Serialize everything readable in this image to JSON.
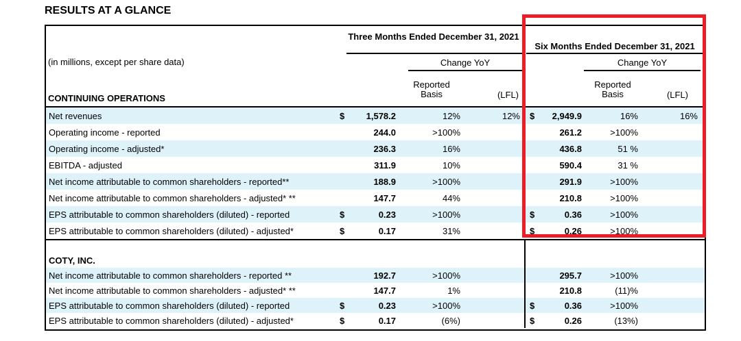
{
  "page_title": "RESULTS AT A GLANCE",
  "table": {
    "units_note": "(in millions, except per share data)",
    "period_groups": [
      {
        "title": "Three Months Ended December 31, 2021",
        "change_label": "Change YoY",
        "reported_basis": [
          "Reported",
          "Basis"
        ],
        "lfl_label": "(LFL)"
      },
      {
        "title": "Six Months Ended December 31, 2021",
        "change_label": "Change YoY",
        "reported_basis": [
          "Reported",
          "Basis"
        ],
        "lfl_label": "(LFL)"
      }
    ],
    "sections": [
      {
        "heading": "CONTINUING OPERATIONS",
        "heading_row": false,
        "rows": [
          {
            "label": "Net revenues",
            "usd_3m": "$",
            "value_3m": "1,578.2",
            "reported_3m": "12%",
            "lfl_3m": "12%",
            "usd_6m": "$",
            "value_6m": "2,949.9",
            "reported_6m": "16%",
            "lfl_6m": "16%"
          },
          {
            "label": "Operating income - reported",
            "usd_3m": "",
            "value_3m": "244.0",
            "reported_3m": ">100%",
            "lfl_3m": "",
            "usd_6m": "",
            "value_6m": "261.2",
            "reported_6m": ">100%",
            "lfl_6m": ""
          },
          {
            "label": "Operating income - adjusted*",
            "usd_3m": "",
            "value_3m": "236.3",
            "reported_3m": "16%",
            "lfl_3m": "",
            "usd_6m": "",
            "value_6m": "436.8",
            "reported_6m": "51 %",
            "lfl_6m": ""
          },
          {
            "label": "EBITDA - adjusted",
            "usd_3m": "",
            "value_3m": "311.9",
            "reported_3m": "10%",
            "lfl_3m": "",
            "usd_6m": "",
            "value_6m": "590.4",
            "reported_6m": "31 %",
            "lfl_6m": ""
          },
          {
            "label": "Net income attributable to common shareholders - reported**",
            "usd_3m": "",
            "value_3m": "188.9",
            "reported_3m": ">100%",
            "lfl_3m": "",
            "usd_6m": "",
            "value_6m": "291.9",
            "reported_6m": ">100%",
            "lfl_6m": ""
          },
          {
            "label": "Net income attributable to common shareholders - adjusted* **",
            "usd_3m": "",
            "value_3m": "147.7",
            "reported_3m": "44%",
            "lfl_3m": "",
            "usd_6m": "",
            "value_6m": "210.8",
            "reported_6m": ">100%",
            "lfl_6m": ""
          },
          {
            "label": "EPS attributable to common shareholders (diluted) - reported",
            "usd_3m": "$",
            "value_3m": "0.23",
            "reported_3m": ">100%",
            "lfl_3m": "",
            "usd_6m": "$",
            "value_6m": "0.36",
            "reported_6m": ">100%",
            "lfl_6m": ""
          },
          {
            "label": "EPS attributable to common shareholders (diluted) - adjusted*",
            "usd_3m": "$",
            "value_3m": "0.17",
            "reported_3m": "31%",
            "lfl_3m": "",
            "usd_6m": "$",
            "value_6m": "0.26",
            "reported_6m": ">100%",
            "lfl_6m": ""
          }
        ]
      },
      {
        "heading": "COTY, INC.",
        "heading_row": true,
        "rows": [
          {
            "label": "Net income attributable to common shareholders - reported **",
            "usd_3m": "",
            "value_3m": "192.7",
            "reported_3m": ">100%",
            "lfl_3m": "",
            "usd_6m": "",
            "value_6m": "295.7",
            "reported_6m": ">100%",
            "lfl_6m": ""
          },
          {
            "label": "Net income attributable to common shareholders - adjusted* **",
            "usd_3m": "",
            "value_3m": "147.7",
            "reported_3m": "1%",
            "lfl_3m": "",
            "usd_6m": "",
            "value_6m": "210.8",
            "reported_6m": "(11)%",
            "lfl_6m": ""
          },
          {
            "label": "EPS attributable to common shareholders (diluted) - reported",
            "usd_3m": "$",
            "value_3m": "0.23",
            "reported_3m": ">100%",
            "lfl_3m": "",
            "usd_6m": "$",
            "value_6m": "0.36",
            "reported_6m": ">100%",
            "lfl_6m": ""
          },
          {
            "label": "EPS attributable to common shareholders (diluted) - adjusted*",
            "usd_3m": "$",
            "value_3m": "0.17",
            "reported_3m": "(6%)",
            "lfl_3m": "",
            "usd_6m": "$",
            "value_6m": "0.26",
            "reported_6m": "(13%)",
            "lfl_6m": ""
          }
        ]
      }
    ],
    "highlight": {
      "color": "#ee1c24",
      "highlighted_group": "Six Months Ended December 31, 2021"
    },
    "stripe_color": "#ddf3f9"
  }
}
